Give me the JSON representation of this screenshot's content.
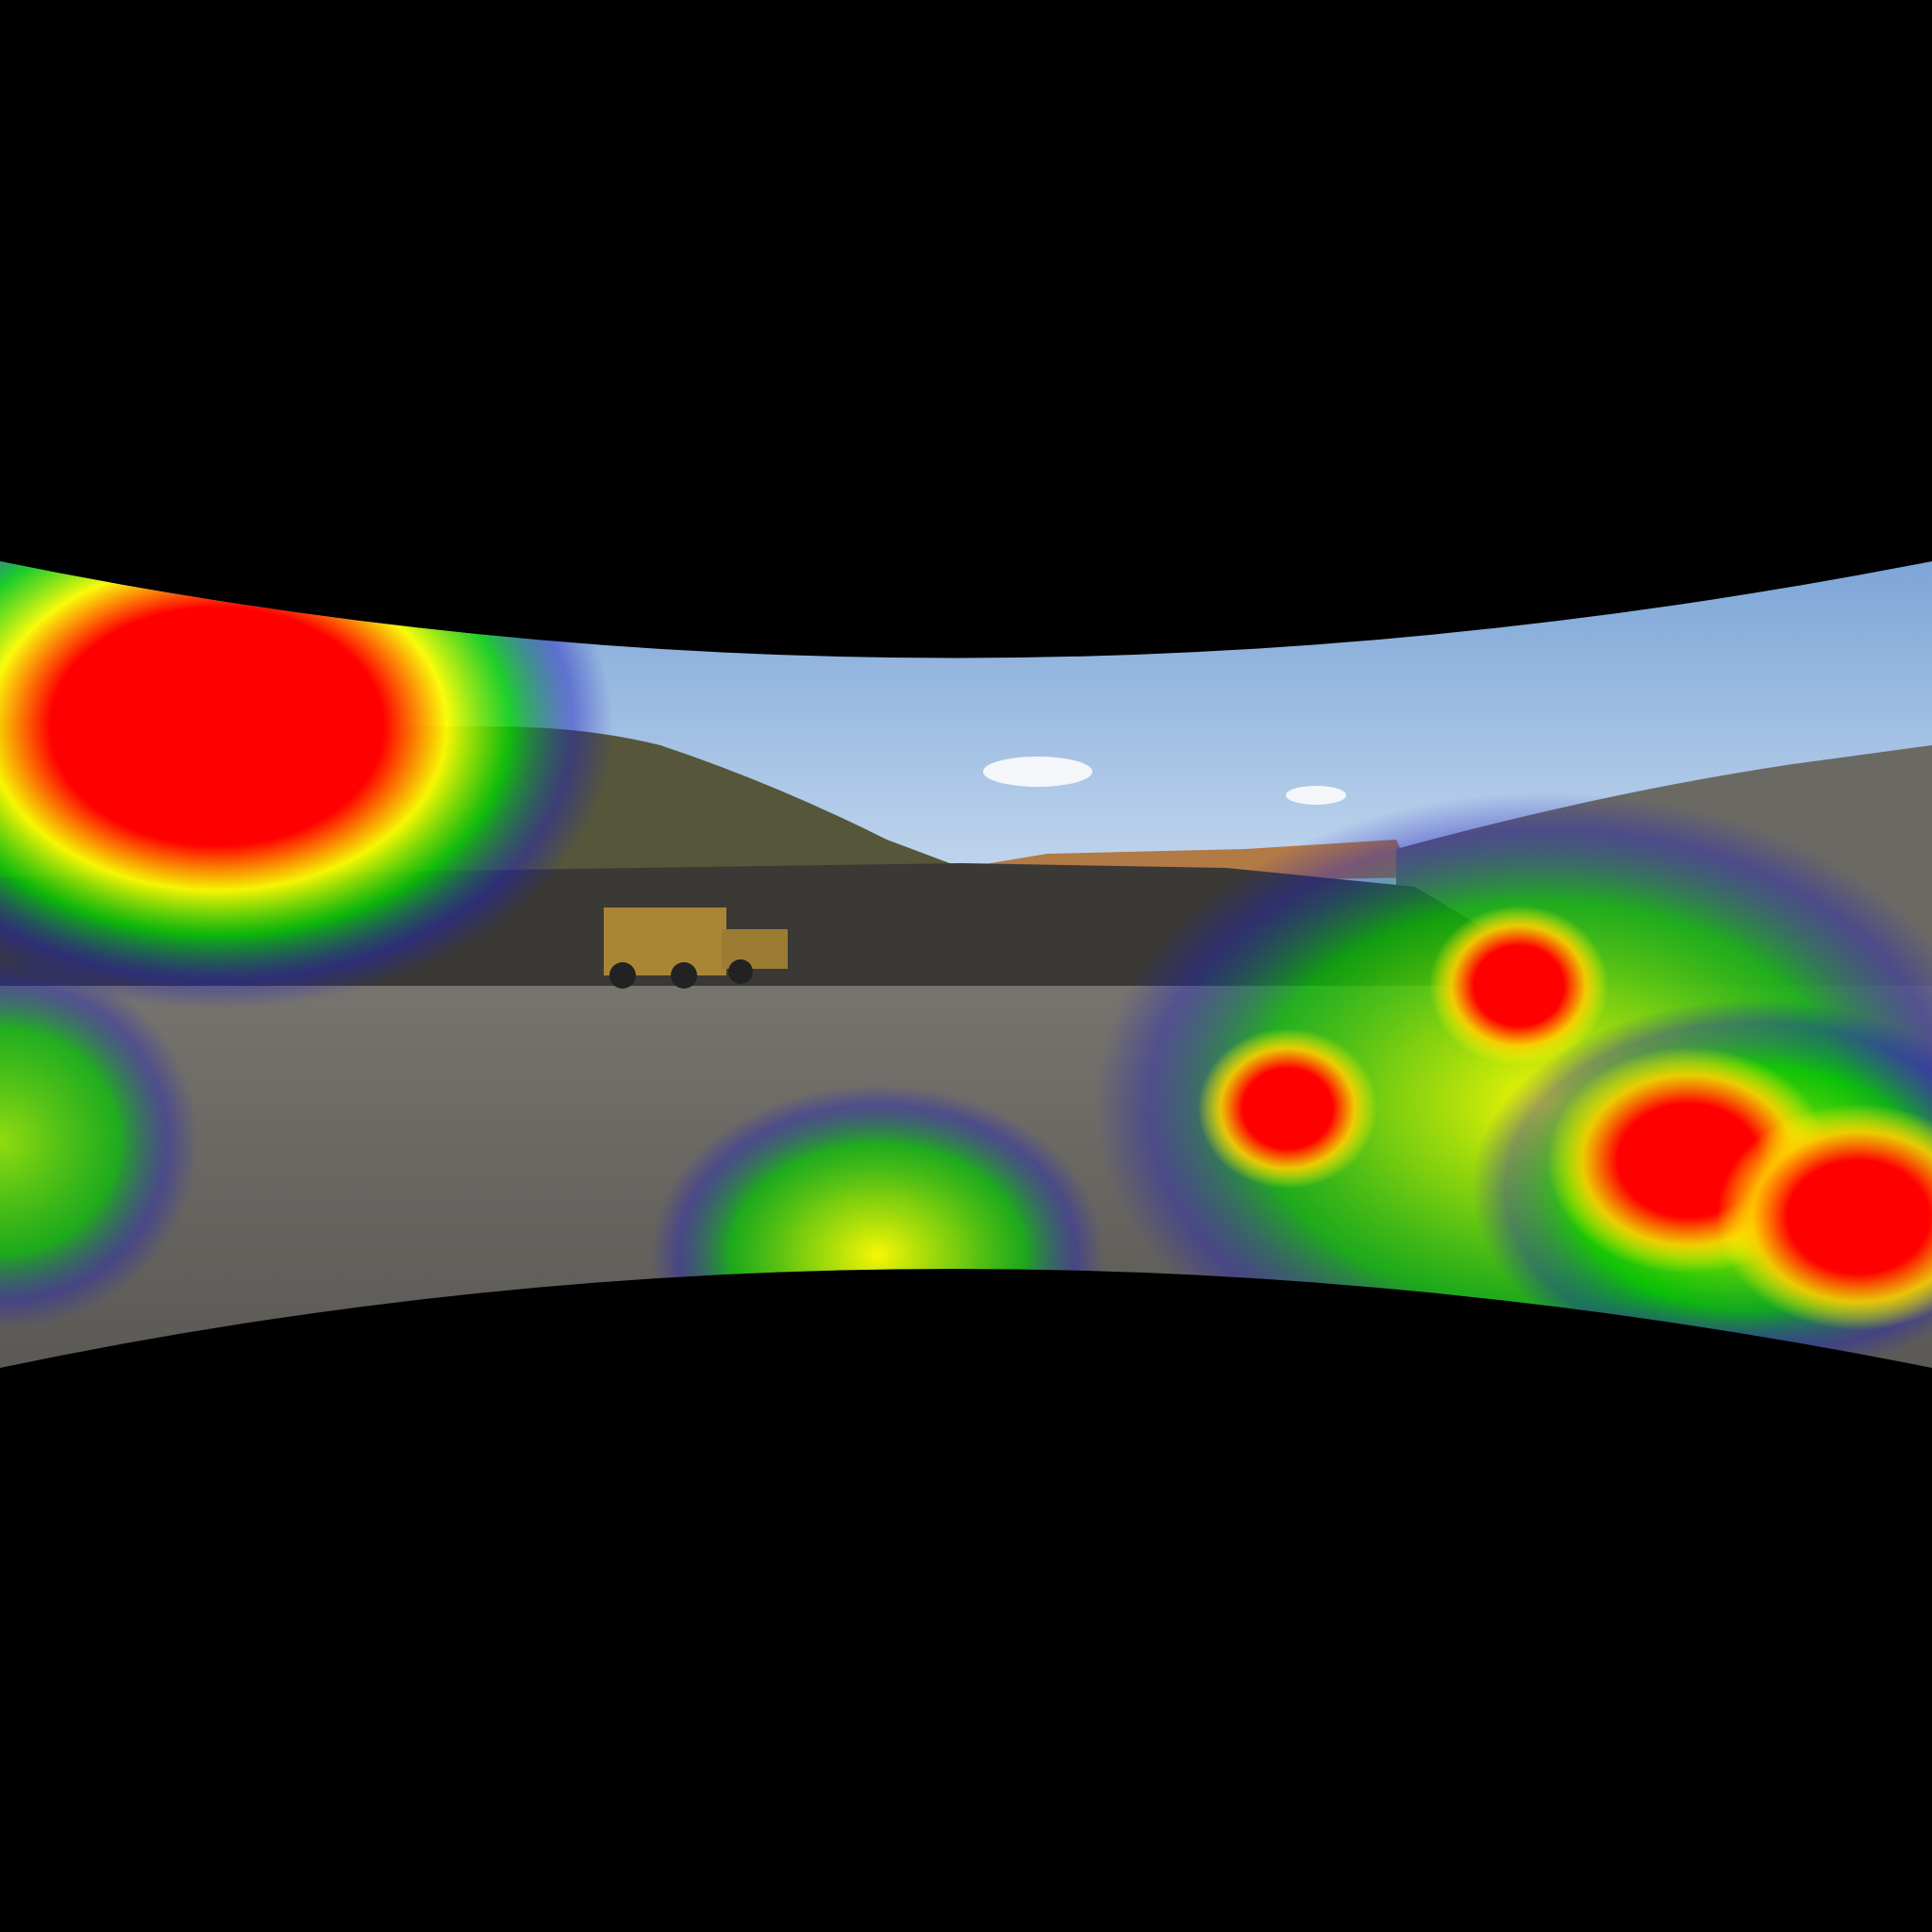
{
  "scene": {
    "description_free": true,
    "colors": {
      "background": "#000000",
      "sky_top": "#7fa6d6",
      "sky_bottom": "#c9daf0",
      "hill": "#5b5a3a",
      "rock_wall": "#3b3a38",
      "orange_band": "#b9763c",
      "ground": "#6c6a66",
      "ground_dark": "#585652",
      "truck": "#b08c3a"
    },
    "heatmap": {
      "colormap": [
        "#0000ff",
        "#00ff00",
        "#ffff00",
        "#ff0000"
      ],
      "blobs": [
        {
          "id": "upper-left",
          "intensity": 1.0
        },
        {
          "id": "left-edge",
          "intensity": 0.55
        },
        {
          "id": "bottom-center",
          "intensity": 0.6
        },
        {
          "id": "right-upper",
          "intensity": 0.9
        },
        {
          "id": "right-mid",
          "intensity": 0.9
        },
        {
          "id": "right-lower-a",
          "intensity": 1.0
        },
        {
          "id": "right-lower-b",
          "intensity": 1.0
        }
      ]
    }
  }
}
